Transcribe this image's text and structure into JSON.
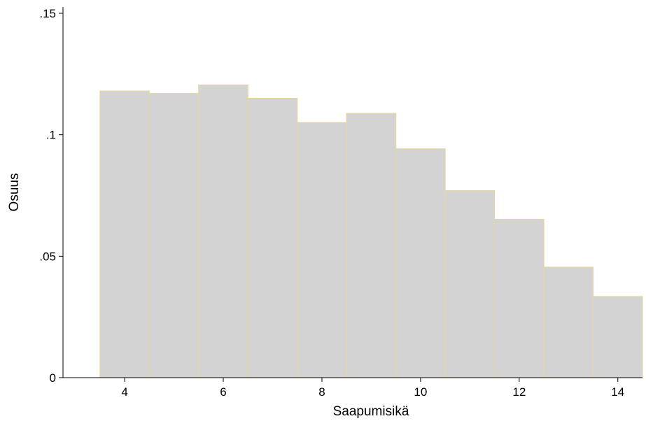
{
  "chart_data": {
    "type": "bar",
    "subtype": "histogram",
    "xlabel": "Saapumisikä",
    "ylabel": "Osuus",
    "categories": [
      4,
      5,
      6,
      7,
      8,
      9,
      10,
      11,
      12,
      13,
      14
    ],
    "values": [
      0.118,
      0.117,
      0.1205,
      0.115,
      0.105,
      0.1088,
      0.0942,
      0.077,
      0.0652,
      0.0455,
      0.0334
    ],
    "bin_width": 1,
    "xlim": [
      2.75,
      14.5
    ],
    "ylim": [
      0,
      0.15
    ],
    "x_ticks": [
      4,
      6,
      8,
      10,
      12,
      14
    ],
    "x_tick_labels": [
      "4",
      "6",
      "8",
      "10",
      "12",
      "14"
    ],
    "y_ticks": [
      0,
      0.05,
      0.1,
      0.15
    ],
    "y_tick_labels": [
      "0",
      ".05",
      ".1",
      ".15"
    ],
    "bar_fill": "#d3d3d3",
    "bar_edge": "#e5d7a2",
    "grid": false,
    "legend": "none"
  }
}
